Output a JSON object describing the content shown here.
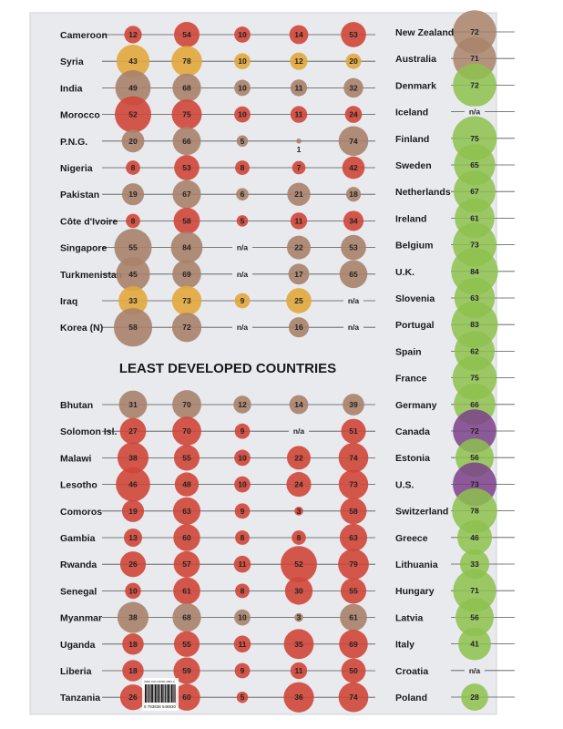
{
  "chart_data": {
    "type": "bubble-table",
    "colors": {
      "red": "#d04638",
      "brown": "#a9826a",
      "gold": "#e2a93c",
      "green": "#8dc14c",
      "purple": "#7b4189",
      "background": "#e8eaee"
    },
    "left_groups": [
      {
        "title": "",
        "rows": [
          {
            "country": "Cameroon",
            "color": "red",
            "values": [
              "12",
              "54",
              "10",
              "14",
              "53"
            ]
          },
          {
            "country": "Syria",
            "color": "gold",
            "values": [
              "43",
              "78",
              "10",
              "12",
              "20"
            ]
          },
          {
            "country": "India",
            "color": "brown",
            "values": [
              "49",
              "68",
              "10",
              "11",
              "32"
            ]
          },
          {
            "country": "Morocco",
            "color": "red",
            "values": [
              "52",
              "75",
              "10",
              "11",
              "24"
            ]
          },
          {
            "country": "P.N.G.",
            "color": "brown",
            "values": [
              "20",
              "66",
              "5",
              "1",
              "74"
            ]
          },
          {
            "country": "Nigeria",
            "color": "red",
            "values": [
              "8",
              "53",
              "8",
              "7",
              "42"
            ]
          },
          {
            "country": "Pakistan",
            "color": "brown",
            "values": [
              "19",
              "67",
              "6",
              "21",
              "18"
            ]
          },
          {
            "country": "Côte d'Ivoire",
            "color": "red",
            "values": [
              "8",
              "58",
              "5",
              "11",
              "34"
            ]
          },
          {
            "country": "Singapore",
            "color": "brown",
            "values": [
              "55",
              "84",
              "n/a",
              "22",
              "53"
            ]
          },
          {
            "country": "Turkmenistan",
            "color": "brown",
            "values": [
              "45",
              "69",
              "n/a",
              "17",
              "65"
            ]
          },
          {
            "country": "Iraq",
            "color": "gold",
            "values": [
              "33",
              "73",
              "9",
              "25",
              "n/a"
            ]
          },
          {
            "country": "Korea (N)",
            "color": "brown",
            "values": [
              "58",
              "72",
              "n/a",
              "16",
              "n/a"
            ]
          }
        ]
      },
      {
        "title": "LEAST DEVELOPED COUNTRIES",
        "rows": [
          {
            "country": "Bhutan",
            "color": "brown",
            "values": [
              "31",
              "70",
              "12",
              "14",
              "39"
            ]
          },
          {
            "country": "Solomon Isl.",
            "color": "red",
            "values": [
              "27",
              "70",
              "9",
              "n/a",
              "51"
            ]
          },
          {
            "country": "Malawi",
            "color": "red",
            "values": [
              "38",
              "55",
              "10",
              "22",
              "74"
            ]
          },
          {
            "country": "Lesotho",
            "color": "red",
            "values": [
              "46",
              "48",
              "10",
              "24",
              "73"
            ]
          },
          {
            "country": "Comoros",
            "color": "red",
            "values": [
              "19",
              "63",
              "9",
              "3",
              "58"
            ]
          },
          {
            "country": "Gambia",
            "color": "red",
            "values": [
              "13",
              "60",
              "8",
              "8",
              "63"
            ]
          },
          {
            "country": "Rwanda",
            "color": "red",
            "values": [
              "26",
              "57",
              "11",
              "52",
              "79"
            ]
          },
          {
            "country": "Senegal",
            "color": "red",
            "values": [
              "10",
              "61",
              "8",
              "30",
              "55"
            ]
          },
          {
            "country": "Myanmar",
            "color": "brown",
            "values": [
              "38",
              "68",
              "10",
              "3",
              "61"
            ]
          },
          {
            "country": "Uganda",
            "color": "red",
            "values": [
              "18",
              "55",
              "11",
              "35",
              "69"
            ]
          },
          {
            "country": "Liberia",
            "color": "red",
            "values": [
              "18",
              "59",
              "9",
              "11",
              "50"
            ]
          },
          {
            "country": "Tanzania",
            "color": "red",
            "values": [
              "26",
              "60",
              "5",
              "36",
              "74"
            ]
          }
        ]
      }
    ],
    "right_rows": [
      {
        "country": "New Zealand",
        "color": "brown",
        "value": "72"
      },
      {
        "country": "Australia",
        "color": "brown",
        "value": "71"
      },
      {
        "country": "Denmark",
        "color": "green",
        "value": "72"
      },
      {
        "country": "Iceland",
        "color": "green",
        "value": "n/a"
      },
      {
        "country": "Finland",
        "color": "green",
        "value": "75"
      },
      {
        "country": "Sweden",
        "color": "green",
        "value": "65"
      },
      {
        "country": "Netherlands",
        "color": "green",
        "value": "67"
      },
      {
        "country": "Ireland",
        "color": "green",
        "value": "61"
      },
      {
        "country": "Belgium",
        "color": "green",
        "value": "73"
      },
      {
        "country": "U.K.",
        "color": "green",
        "value": "84"
      },
      {
        "country": "Slovenia",
        "color": "green",
        "value": "63"
      },
      {
        "country": "Portugal",
        "color": "green",
        "value": "83"
      },
      {
        "country": "Spain",
        "color": "green",
        "value": "62"
      },
      {
        "country": "France",
        "color": "green",
        "value": "75"
      },
      {
        "country": "Germany",
        "color": "green",
        "value": "66"
      },
      {
        "country": "Canada",
        "color": "purple",
        "value": "72"
      },
      {
        "country": "Estonia",
        "color": "green",
        "value": "56"
      },
      {
        "country": "U.S.",
        "color": "purple",
        "value": "73"
      },
      {
        "country": "Switzerland",
        "color": "green",
        "value": "78"
      },
      {
        "country": "Greece",
        "color": "green",
        "value": "46"
      },
      {
        "country": "Lithuania",
        "color": "green",
        "value": "33"
      },
      {
        "country": "Hungary",
        "color": "green",
        "value": "71"
      },
      {
        "country": "Latvia",
        "color": "green",
        "value": "56"
      },
      {
        "country": "Italy",
        "color": "green",
        "value": "41"
      },
      {
        "country": "Croatia",
        "color": "green",
        "value": "n/a"
      },
      {
        "country": "Poland",
        "color": "green",
        "value": "28"
      }
    ],
    "barcode": {
      "isbn": "ISBN 978-3-8365-4883-0",
      "digits": "9 783836 548830"
    }
  }
}
